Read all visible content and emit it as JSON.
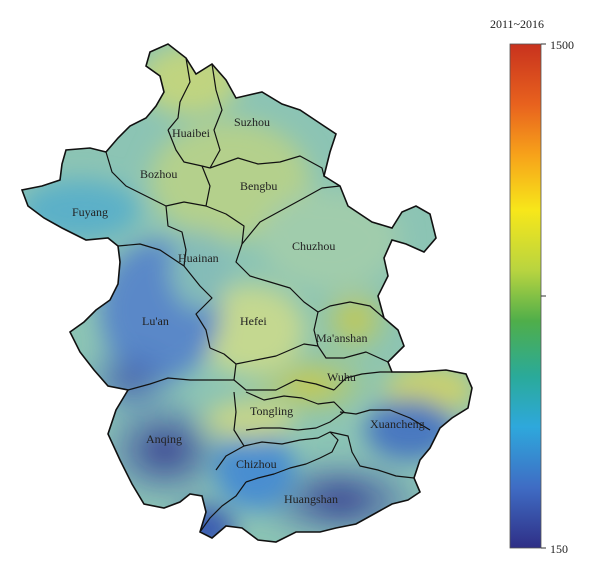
{
  "legend": {
    "title": "2011~2016",
    "max_label": "1500",
    "min_label": "150",
    "max_value": 1500,
    "min_value": 150,
    "colors_top_to_bottom": [
      "#c8321e",
      "#e8621e",
      "#f7a21a",
      "#f7e71a",
      "#c8d640",
      "#5fae4a",
      "#2aaa96",
      "#2ea8dc",
      "#3f6cc4",
      "#2f2f8a"
    ]
  },
  "regions": [
    {
      "name": "Suzhou"
    },
    {
      "name": "Huaibei"
    },
    {
      "name": "Bozhou"
    },
    {
      "name": "Bengbu"
    },
    {
      "name": "Fuyang"
    },
    {
      "name": "Chuzhou"
    },
    {
      "name": "Huainan"
    },
    {
      "name": "Lu'an"
    },
    {
      "name": "Hefei"
    },
    {
      "name": "Ma'anshan"
    },
    {
      "name": "Wuhu"
    },
    {
      "name": "Tongling"
    },
    {
      "name": "Anqing"
    },
    {
      "name": "Xuancheng"
    },
    {
      "name": "Chizhou"
    },
    {
      "name": "Huangshan"
    }
  ]
}
